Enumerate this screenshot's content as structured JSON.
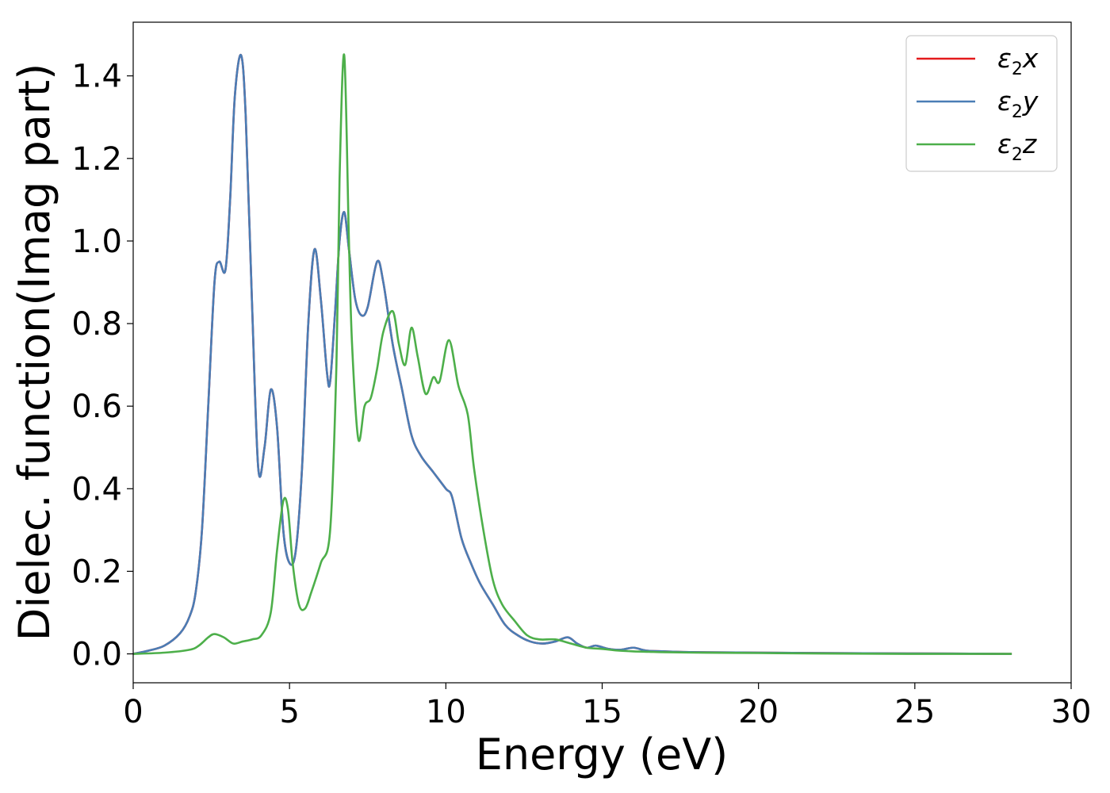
{
  "chart_data": {
    "type": "line",
    "title": "",
    "xlabel": "Energy (eV)",
    "ylabel": "Dielec. function(Imag part)",
    "xlim": [
      0,
      30
    ],
    "ylim": [
      -0.07,
      1.53
    ],
    "x_ticks": [
      0,
      5,
      10,
      15,
      20,
      25,
      30
    ],
    "x_tick_labels": [
      "0",
      "5",
      "10",
      "15",
      "20",
      "25",
      "30"
    ],
    "y_ticks": [
      0.0,
      0.2,
      0.4,
      0.6,
      0.8,
      1.0,
      1.2,
      1.4
    ],
    "y_tick_labels": [
      "0.0",
      "0.2",
      "0.4",
      "0.6",
      "0.8",
      "1.0",
      "1.2",
      "1.4"
    ],
    "grid": false,
    "legend_position": "top-right",
    "series": [
      {
        "name": "ε2x",
        "symbol": "ε",
        "subscript": "2",
        "axis": "x",
        "color": "#e41a1c",
        "x": [
          0,
          0.5,
          1.0,
          1.5,
          1.8,
          2.0,
          2.2,
          2.4,
          2.6,
          2.75,
          2.95,
          3.1,
          3.25,
          3.45,
          3.6,
          3.8,
          4.0,
          4.2,
          4.4,
          4.6,
          4.8,
          5.0,
          5.2,
          5.4,
          5.6,
          5.8,
          6.0,
          6.2,
          6.3,
          6.45,
          6.6,
          6.75,
          6.9,
          7.1,
          7.3,
          7.5,
          7.8,
          8.0,
          8.3,
          8.6,
          8.9,
          9.2,
          9.6,
          10.0,
          10.2,
          10.5,
          10.8,
          11.1,
          11.5,
          11.9,
          12.3,
          12.7,
          13.1,
          13.5,
          13.9,
          14.2,
          14.5,
          14.8,
          15.2,
          15.6,
          16.0,
          16.4,
          17.0,
          18.0,
          20.0,
          22.0,
          25.0,
          28.1
        ],
        "y": [
          0.0,
          0.008,
          0.02,
          0.05,
          0.09,
          0.15,
          0.3,
          0.6,
          0.9,
          0.95,
          0.93,
          1.1,
          1.35,
          1.45,
          1.3,
          0.85,
          0.45,
          0.5,
          0.64,
          0.55,
          0.3,
          0.22,
          0.25,
          0.45,
          0.8,
          0.98,
          0.86,
          0.68,
          0.66,
          0.82,
          1.0,
          1.07,
          0.98,
          0.86,
          0.82,
          0.84,
          0.95,
          0.9,
          0.75,
          0.64,
          0.53,
          0.48,
          0.44,
          0.4,
          0.38,
          0.28,
          0.22,
          0.17,
          0.12,
          0.07,
          0.045,
          0.03,
          0.025,
          0.03,
          0.04,
          0.025,
          0.015,
          0.02,
          0.012,
          0.01,
          0.015,
          0.008,
          0.006,
          0.004,
          0.003,
          0.002,
          0.001,
          0.0
        ]
      },
      {
        "name": "ε2y",
        "symbol": "ε",
        "subscript": "2",
        "axis": "y",
        "color": "#4a7db5",
        "x": [
          0,
          0.5,
          1.0,
          1.5,
          1.8,
          2.0,
          2.2,
          2.4,
          2.6,
          2.75,
          2.95,
          3.1,
          3.25,
          3.45,
          3.6,
          3.8,
          4.0,
          4.2,
          4.4,
          4.6,
          4.8,
          5.0,
          5.2,
          5.4,
          5.6,
          5.8,
          6.0,
          6.2,
          6.3,
          6.45,
          6.6,
          6.75,
          6.9,
          7.1,
          7.3,
          7.5,
          7.8,
          8.0,
          8.3,
          8.6,
          8.9,
          9.2,
          9.6,
          10.0,
          10.2,
          10.5,
          10.8,
          11.1,
          11.5,
          11.9,
          12.3,
          12.7,
          13.1,
          13.5,
          13.9,
          14.2,
          14.5,
          14.8,
          15.2,
          15.6,
          16.0,
          16.4,
          17.0,
          18.0,
          20.0,
          22.0,
          25.0,
          28.1
        ],
        "y": [
          0.0,
          0.008,
          0.02,
          0.05,
          0.09,
          0.15,
          0.3,
          0.6,
          0.9,
          0.95,
          0.93,
          1.1,
          1.35,
          1.45,
          1.3,
          0.85,
          0.45,
          0.5,
          0.64,
          0.55,
          0.3,
          0.22,
          0.25,
          0.45,
          0.8,
          0.98,
          0.86,
          0.68,
          0.66,
          0.82,
          1.0,
          1.07,
          0.98,
          0.86,
          0.82,
          0.84,
          0.95,
          0.9,
          0.75,
          0.64,
          0.53,
          0.48,
          0.44,
          0.4,
          0.38,
          0.28,
          0.22,
          0.17,
          0.12,
          0.07,
          0.045,
          0.03,
          0.025,
          0.03,
          0.04,
          0.025,
          0.015,
          0.02,
          0.012,
          0.01,
          0.015,
          0.008,
          0.006,
          0.004,
          0.003,
          0.002,
          0.001,
          0.0
        ]
      },
      {
        "name": "ε2z",
        "symbol": "ε",
        "subscript": "2",
        "axis": "z",
        "color": "#4daf4a",
        "x": [
          0,
          1.0,
          1.8,
          2.1,
          2.4,
          2.6,
          2.9,
          3.2,
          3.5,
          3.8,
          4.1,
          4.4,
          4.6,
          4.8,
          4.95,
          5.1,
          5.3,
          5.5,
          5.7,
          6.0,
          6.3,
          6.5,
          6.6,
          6.75,
          6.9,
          7.0,
          7.2,
          7.4,
          7.6,
          7.8,
          8.0,
          8.3,
          8.5,
          8.7,
          8.9,
          9.1,
          9.35,
          9.6,
          9.8,
          10.1,
          10.4,
          10.7,
          10.9,
          11.2,
          11.5,
          11.8,
          12.2,
          12.6,
          13.0,
          13.5,
          14.0,
          14.5,
          15.0,
          15.5,
          16.0,
          16.5,
          17.0,
          18.0,
          20.0,
          22.0,
          25.0,
          28.1
        ],
        "y": [
          0.0,
          0.003,
          0.01,
          0.02,
          0.04,
          0.048,
          0.04,
          0.025,
          0.03,
          0.035,
          0.045,
          0.1,
          0.25,
          0.37,
          0.35,
          0.22,
          0.12,
          0.11,
          0.15,
          0.22,
          0.3,
          0.7,
          1.15,
          1.45,
          1.0,
          0.75,
          0.52,
          0.6,
          0.62,
          0.69,
          0.78,
          0.83,
          0.75,
          0.7,
          0.79,
          0.72,
          0.63,
          0.67,
          0.66,
          0.76,
          0.65,
          0.58,
          0.45,
          0.3,
          0.18,
          0.12,
          0.08,
          0.045,
          0.035,
          0.035,
          0.025,
          0.015,
          0.012,
          0.008,
          0.006,
          0.005,
          0.004,
          0.003,
          0.002,
          0.001,
          0.0,
          0.0
        ]
      }
    ]
  }
}
